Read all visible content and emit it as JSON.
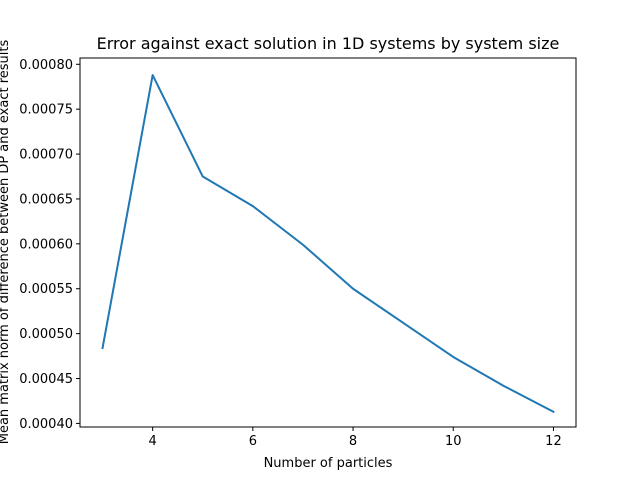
{
  "chart_data": {
    "type": "line",
    "title": "Error against exact solution in 1D systems by system size",
    "xlabel": "Number of particles",
    "ylabel": "Mean matrix norm of difference between DP and exact results",
    "xlim": [
      2.55,
      12.45
    ],
    "ylim": [
      0.000396,
      0.000807
    ],
    "x_ticks": [
      4,
      6,
      8,
      10,
      12
    ],
    "x_tick_labels": [
      "4",
      "6",
      "8",
      "10",
      "12"
    ],
    "y_ticks": [
      0.0004,
      0.00045,
      0.0005,
      0.00055,
      0.0006,
      0.00065,
      0.0007,
      0.00075,
      0.0008
    ],
    "y_tick_labels": [
      "0.00040",
      "0.00045",
      "0.00050",
      "0.00055",
      "0.00060",
      "0.00065",
      "0.00070",
      "0.00075",
      "0.00080"
    ],
    "grid": false,
    "legend": "none",
    "series": [
      {
        "color": "#1f77b4",
        "x": [
          3,
          4,
          5,
          6,
          7,
          8,
          9,
          10,
          11,
          12
        ],
        "y": [
          0.000484,
          0.000788,
          0.000675,
          0.000642,
          0.000599,
          0.00055,
          0.000512,
          0.000474,
          0.000442,
          0.000413
        ]
      }
    ]
  }
}
